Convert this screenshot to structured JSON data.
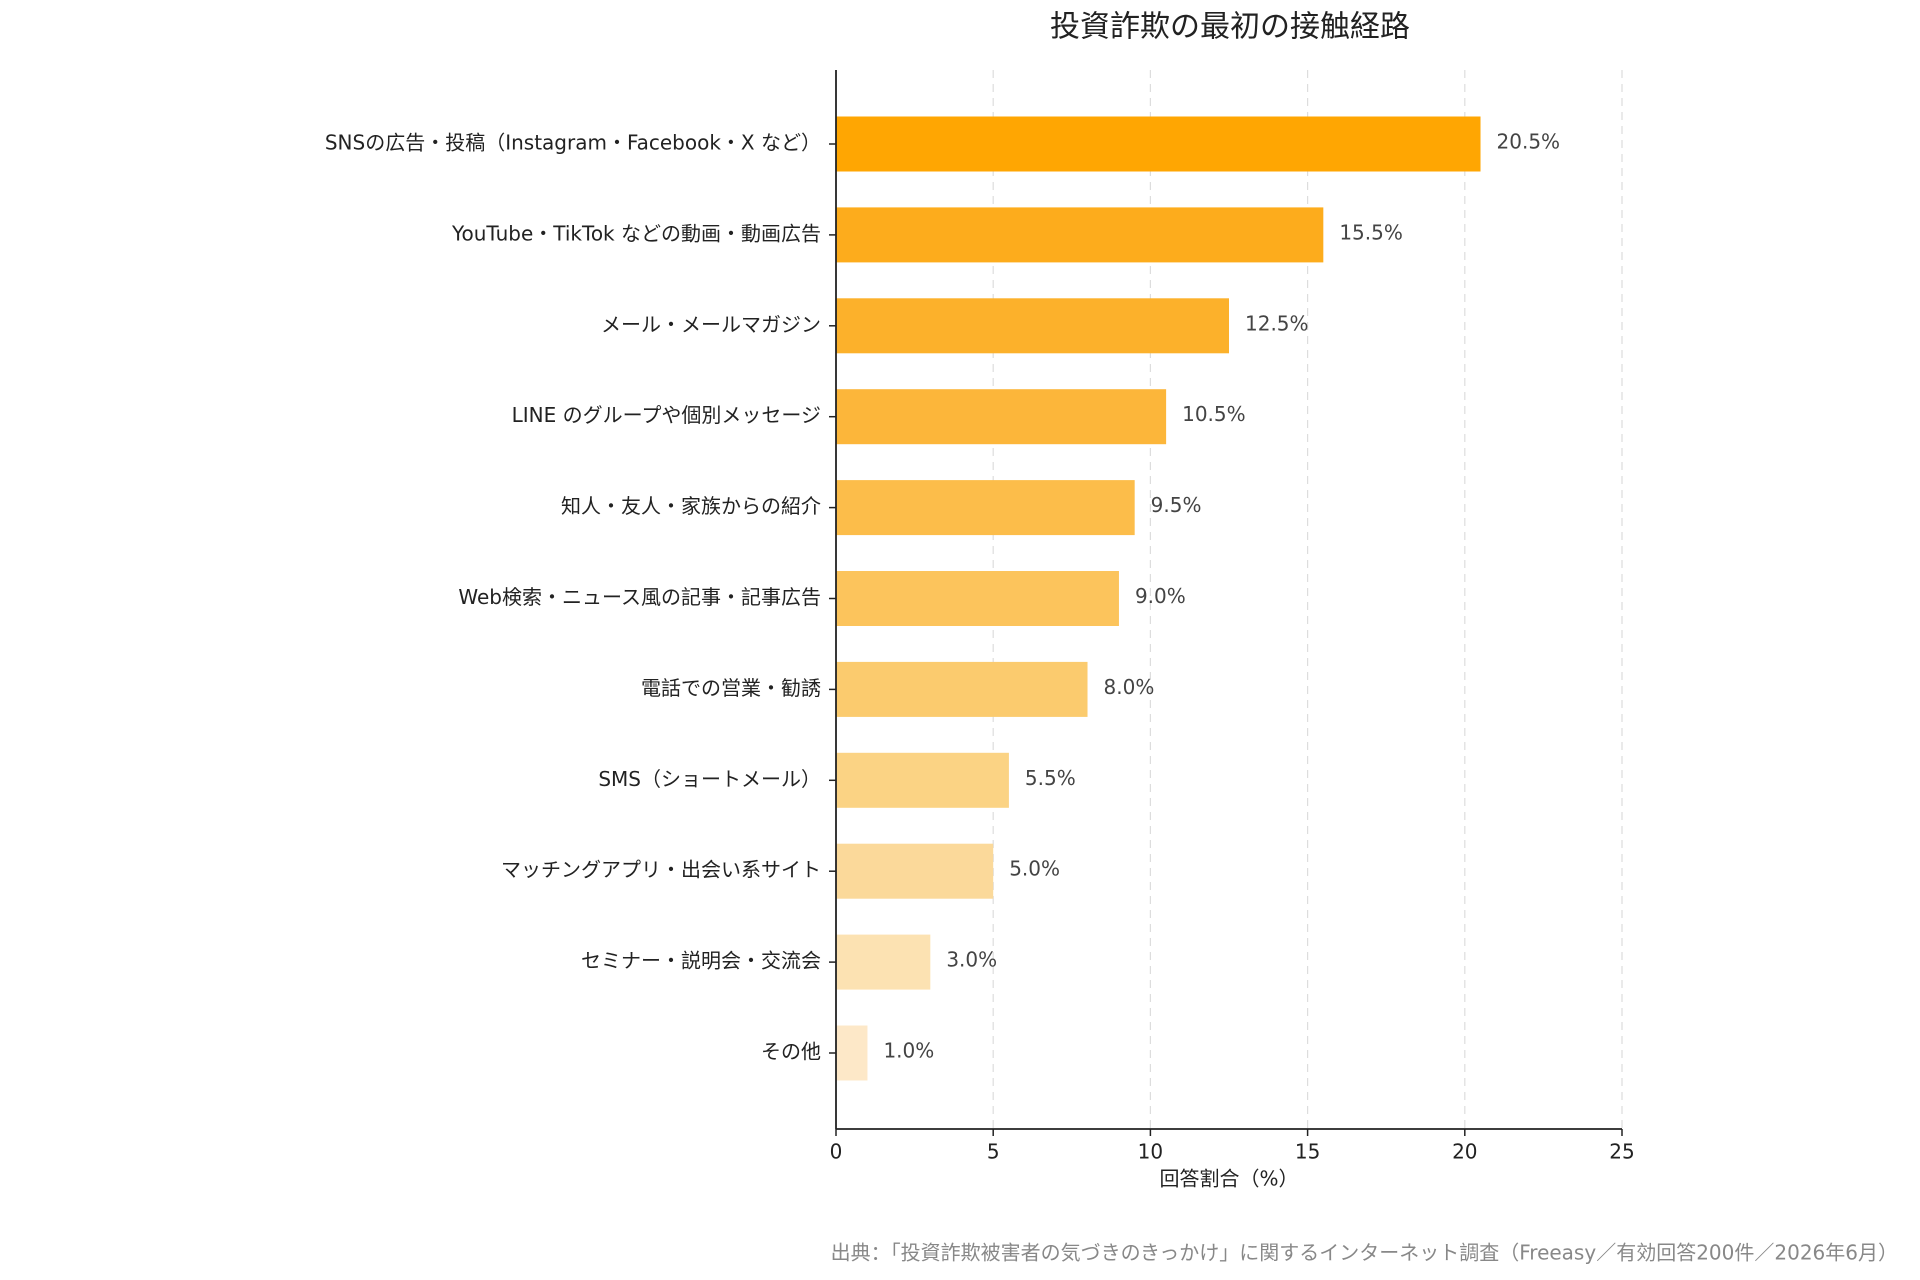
{
  "chart_data": {
    "type": "barh",
    "title": "投資詐欺の最初の接触経路",
    "categories": [
      "SNSの広告・投稿（Instagram・Facebook・X など）",
      "YouTube・TikTok などの動画・動画広告",
      "メール・メールマガジン",
      "LINE のグループや個別メッセージ",
      "知人・友人・家族からの紹介",
      "Web検索・ニュース風の記事・記事広告",
      "電話での営業・勧誘",
      "SMS（ショートメール）",
      "マッチングアプリ・出会い系サイト",
      "セミナー・説明会・交流会",
      "その他"
    ],
    "values": [
      20.5,
      15.5,
      12.5,
      10.5,
      9.5,
      9.0,
      8.0,
      5.5,
      5.0,
      3.0,
      1.0
    ],
    "value_labels": [
      "20.5%",
      "15.5%",
      "12.5%",
      "10.5%",
      "9.5%",
      "9.0%",
      "8.0%",
      "5.5%",
      "5.0%",
      "3.0%",
      "1.0%"
    ],
    "colors": [
      "#ffa602",
      "#fdac1c",
      "#fcb12b",
      "#fcb63a",
      "#fcbd4a",
      "#fcc45c",
      "#fbcb6e",
      "#fbd384",
      "#fbd99a",
      "#fce2b2",
      "#fde8c8"
    ],
    "xlabel": "回答割合（%）",
    "xlim": [
      0,
      25
    ],
    "xticks": [
      0,
      5,
      10,
      15,
      20,
      25
    ],
    "grid": true,
    "source": "出典：「投資詐欺被害者の気づきのきっかけ」に関するインターネット調査（Freeasy／有効回答200件／2026年6月）"
  }
}
